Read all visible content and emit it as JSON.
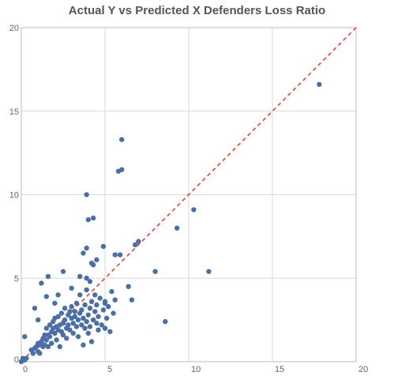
{
  "chart_data": {
    "type": "scatter",
    "title": "Actual Y vs Predicted X Defenders Loss Ratio",
    "xlabel": "",
    "ylabel": "",
    "xlim": [
      0,
      20
    ],
    "ylim": [
      0,
      20
    ],
    "x_ticks": [
      "0",
      "5",
      "10",
      "15",
      "20"
    ],
    "y_ticks": [
      "0",
      "5",
      "10",
      "15",
      "20"
    ],
    "grid": true,
    "point_color": "#4a6fa8",
    "reference_line": {
      "from": [
        0,
        0
      ],
      "to": [
        20,
        20
      ],
      "style": "dashed",
      "color": "#e8413c"
    },
    "points": [
      [
        0.0,
        0.0
      ],
      [
        0.1,
        0.2
      ],
      [
        0.2,
        0.1
      ],
      [
        0.3,
        0.2
      ],
      [
        0.2,
        1.5
      ],
      [
        0.6,
        0.7
      ],
      [
        0.7,
        0.5
      ],
      [
        0.8,
        0.8
      ],
      [
        0.9,
        0.9
      ],
      [
        1.0,
        0.6
      ],
      [
        1.0,
        1.1
      ],
      [
        1.1,
        1.0
      ],
      [
        1.1,
        0.5
      ],
      [
        1.2,
        1.2
      ],
      [
        1.3,
        0.9
      ],
      [
        1.3,
        1.4
      ],
      [
        1.4,
        1.0
      ],
      [
        1.4,
        1.6
      ],
      [
        1.5,
        1.3
      ],
      [
        1.5,
        2.0
      ],
      [
        1.6,
        1.6
      ],
      [
        1.6,
        0.9
      ],
      [
        1.7,
        1.5
      ],
      [
        1.7,
        2.2
      ],
      [
        1.8,
        1.8
      ],
      [
        1.8,
        1.1
      ],
      [
        1.9,
        2.0
      ],
      [
        1.9,
        2.4
      ],
      [
        2.0,
        1.7
      ],
      [
        2.0,
        2.6
      ],
      [
        2.1,
        2.1
      ],
      [
        2.1,
        1.3
      ],
      [
        2.2,
        2.7
      ],
      [
        2.2,
        1.9
      ],
      [
        2.3,
        2.2
      ],
      [
        2.3,
        0.9
      ],
      [
        2.4,
        1.8
      ],
      [
        2.4,
        2.9
      ],
      [
        2.5,
        2.3
      ],
      [
        2.5,
        1.6
      ],
      [
        2.6,
        2.5
      ],
      [
        2.6,
        3.2
      ],
      [
        2.7,
        2.0
      ],
      [
        2.7,
        1.4
      ],
      [
        2.8,
        2.8
      ],
      [
        2.8,
        2.2
      ],
      [
        2.9,
        3.0
      ],
      [
        2.9,
        1.9
      ],
      [
        3.0,
        2.6
      ],
      [
        3.0,
        3.3
      ],
      [
        3.1,
        2.3
      ],
      [
        3.1,
        1.7
      ],
      [
        3.2,
        3.0
      ],
      [
        3.2,
        2.7
      ],
      [
        3.3,
        2.1
      ],
      [
        3.3,
        3.5
      ],
      [
        3.4,
        2.5
      ],
      [
        3.4,
        1.5
      ],
      [
        3.5,
        2.9
      ],
      [
        3.5,
        4.0
      ],
      [
        3.6,
        2.2
      ],
      [
        3.6,
        3.1
      ],
      [
        3.7,
        1.0
      ],
      [
        3.7,
        2.6
      ],
      [
        3.8,
        2.0
      ],
      [
        3.8,
        3.4
      ],
      [
        3.9,
        2.4
      ],
      [
        3.9,
        4.3
      ],
      [
        4.0,
        2.8
      ],
      [
        4.0,
        1.7
      ],
      [
        4.1,
        3.2
      ],
      [
        4.1,
        2.1
      ],
      [
        4.2,
        3.6
      ],
      [
        4.2,
        1.2
      ],
      [
        4.3,
        2.5
      ],
      [
        4.4,
        3.0
      ],
      [
        4.4,
        4.0
      ],
      [
        4.5,
        2.3
      ],
      [
        4.5,
        3.4
      ],
      [
        4.6,
        1.9
      ],
      [
        4.6,
        2.7
      ],
      [
        4.7,
        3.8
      ],
      [
        4.8,
        2.2
      ],
      [
        4.9,
        3.1
      ],
      [
        5.0,
        3.5
      ],
      [
        5.0,
        2.0
      ],
      [
        5.1,
        2.6
      ],
      [
        5.2,
        3.3
      ],
      [
        5.3,
        1.8
      ],
      [
        5.4,
        4.2
      ],
      [
        5.5,
        2.9
      ],
      [
        5.6,
        3.7
      ],
      [
        0.8,
        3.2
      ],
      [
        1.2,
        4.7
      ],
      [
        1.6,
        5.1
      ],
      [
        1.0,
        2.5
      ],
      [
        1.5,
        3.9
      ],
      [
        2.2,
        4.0
      ],
      [
        2.5,
        5.4
      ],
      [
        2.0,
        3.5
      ],
      [
        3.0,
        4.4
      ],
      [
        3.5,
        5.1
      ],
      [
        3.9,
        5.0
      ],
      [
        4.1,
        4.8
      ],
      [
        4.2,
        5.9
      ],
      [
        3.7,
        6.5
      ],
      [
        3.9,
        6.8
      ],
      [
        4.5,
        6.1
      ],
      [
        4.9,
        6.9
      ],
      [
        5.6,
        6.4
      ],
      [
        5.9,
        6.4
      ],
      [
        6.4,
        4.5
      ],
      [
        6.6,
        3.7
      ],
      [
        6.8,
        7.0
      ],
      [
        7.0,
        7.2
      ],
      [
        5.0,
        3.6
      ],
      [
        4.3,
        5.8
      ],
      [
        3.9,
        10.0
      ],
      [
        4.0,
        8.5
      ],
      [
        4.3,
        8.6
      ],
      [
        5.8,
        11.4
      ],
      [
        6.0,
        11.5
      ],
      [
        6.0,
        13.3
      ],
      [
        8.0,
        5.4
      ],
      [
        8.6,
        2.4
      ],
      [
        9.3,
        8.0
      ],
      [
        10.3,
        9.1
      ],
      [
        11.2,
        5.4
      ],
      [
        17.8,
        16.6
      ]
    ]
  }
}
